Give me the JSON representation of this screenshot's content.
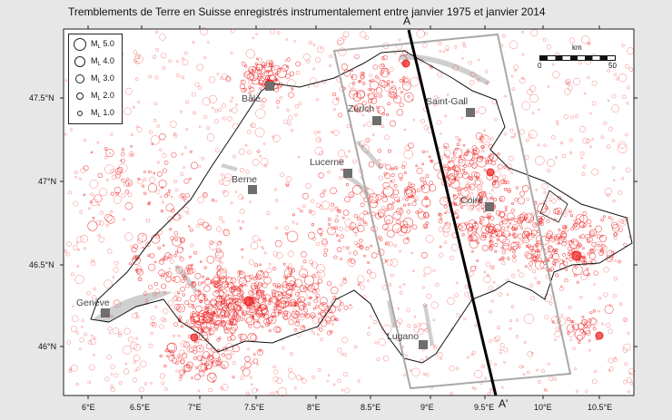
{
  "title": "Tremblements de Terre en Suisse enregistrés instrumentalement entre janvier 1975 et janvier 2014",
  "profile": {
    "start_label": "A",
    "end_label": "A'"
  },
  "axes": {
    "x_ticks": [
      "6°E",
      "6.5°E",
      "7°E",
      "7.5°E",
      "8°E",
      "8.5°E",
      "9°E",
      "9.5°E",
      "10°E",
      "10.5°E"
    ],
    "y_ticks": [
      "47.5°N",
      "47°N",
      "46.5°N",
      "46°N"
    ]
  },
  "cities": [
    {
      "name": "Bâle"
    },
    {
      "name": "Zurich"
    },
    {
      "name": "Saint-Gall"
    },
    {
      "name": "Lucerne"
    },
    {
      "name": "Berne"
    },
    {
      "name": "Coire"
    },
    {
      "name": "Genève"
    },
    {
      "name": "Lugano"
    }
  ],
  "legend": {
    "items": [
      {
        "prefix": "M",
        "sub": "L",
        "value": "5.0"
      },
      {
        "prefix": "M",
        "sub": "L",
        "value": "4.0"
      },
      {
        "prefix": "M",
        "sub": "L",
        "value": "3.0"
      },
      {
        "prefix": "M",
        "sub": "L",
        "value": "2.0"
      },
      {
        "prefix": "M",
        "sub": "L",
        "value": "1.0"
      }
    ]
  },
  "scale_bar": {
    "unit": "km",
    "start": "0",
    "end": "50"
  },
  "colors": {
    "event": "#ee1c1c",
    "lakes": "#cfcfcf",
    "border": "#111111",
    "box": "#a8a8a8"
  }
}
